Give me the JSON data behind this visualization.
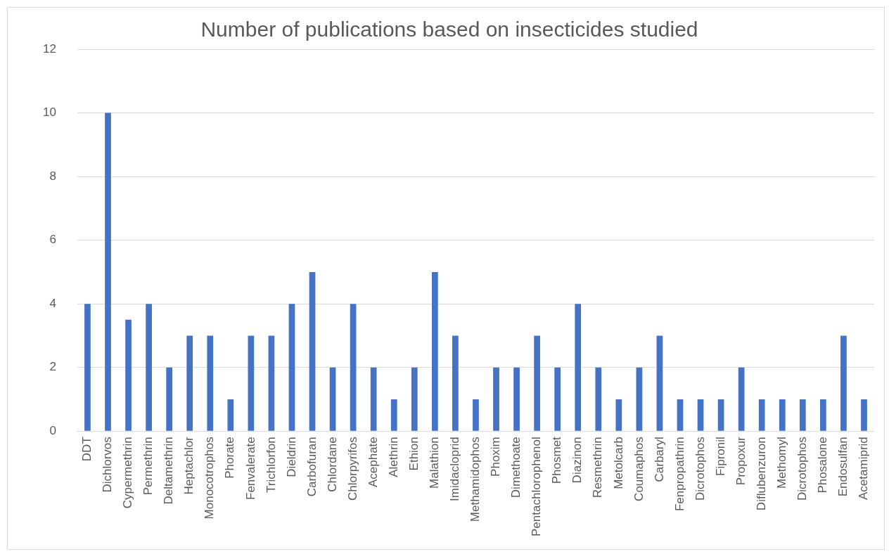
{
  "chart_data": {
    "type": "bar",
    "title": "Number of publications based on insecticides studied",
    "categories": [
      "DDT",
      "Dichlorvos",
      "Cypermethrin",
      "Permethrin",
      "Deltamethrin",
      "Heptachlor",
      "Monocotrophos",
      "Phorate",
      "Fenvalerate",
      "Trichlorfon",
      "Dieldrin",
      "Carbofuran",
      "Chlordane",
      "Chlorpyrifos",
      "Acephate",
      "Alethrin",
      "Ethion",
      "Malathion",
      "Imidacloprid",
      "Methamidophos",
      "Phoxim",
      "Dimethoate",
      "Pentachlorophenol",
      "Phosmet",
      "Diazinon",
      "Resmethrin",
      "Metolcarb",
      "Coumaphos",
      "Carbaryl",
      "Fenpropathrin",
      "Dicrotophos",
      "Fipronil",
      "Propoxur",
      "Diflubenzuron",
      "Methomyl",
      "Dicrotophos",
      "Phosalone",
      "Endosulfan",
      "Acetamiprid"
    ],
    "values": [
      4,
      10,
      3.5,
      4,
      2,
      3,
      3,
      1,
      3,
      3,
      4,
      5,
      2,
      4,
      2,
      1,
      2,
      5,
      3,
      1,
      2,
      2,
      3,
      2,
      4,
      2,
      1,
      2,
      3,
      1,
      1,
      1,
      2,
      1,
      1,
      1,
      1,
      3,
      1
    ],
    "color": "#4472c4",
    "ylim": [
      0,
      12
    ],
    "yticks": [
      0,
      2,
      4,
      6,
      8,
      10,
      12
    ],
    "grid": "y"
  }
}
